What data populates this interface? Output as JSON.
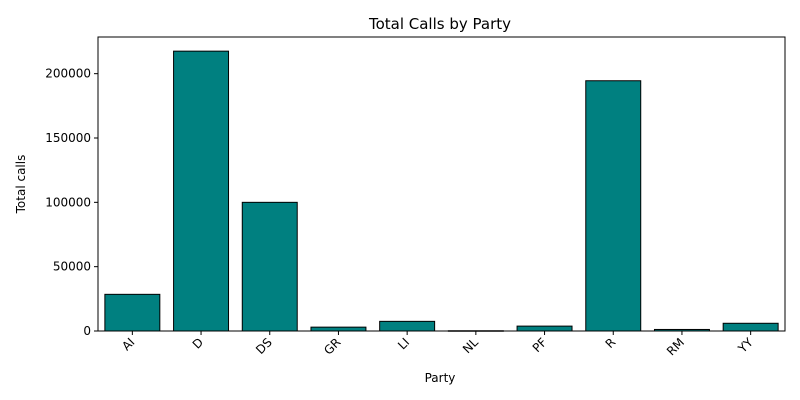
{
  "chart_data": {
    "type": "bar",
    "title": "Total Calls by Party",
    "xlabel": "Party",
    "ylabel": "Total calls",
    "categories": [
      "AI",
      "D",
      "DS",
      "GR",
      "LI",
      "NL",
      "PF",
      "R",
      "RM",
      "YY"
    ],
    "values": [
      28500,
      217500,
      100000,
      3000,
      7500,
      200,
      3800,
      194500,
      1200,
      6000
    ],
    "ylim": [
      0,
      228500
    ],
    "yticks": [
      0,
      50000,
      100000,
      150000,
      200000
    ],
    "ytick_labels": [
      "0",
      "50000",
      "100000",
      "150000",
      "200000"
    ],
    "grid": false,
    "legend": "none",
    "colors": {
      "bar_fill": "#008080",
      "bar_edge": "#000000"
    }
  }
}
